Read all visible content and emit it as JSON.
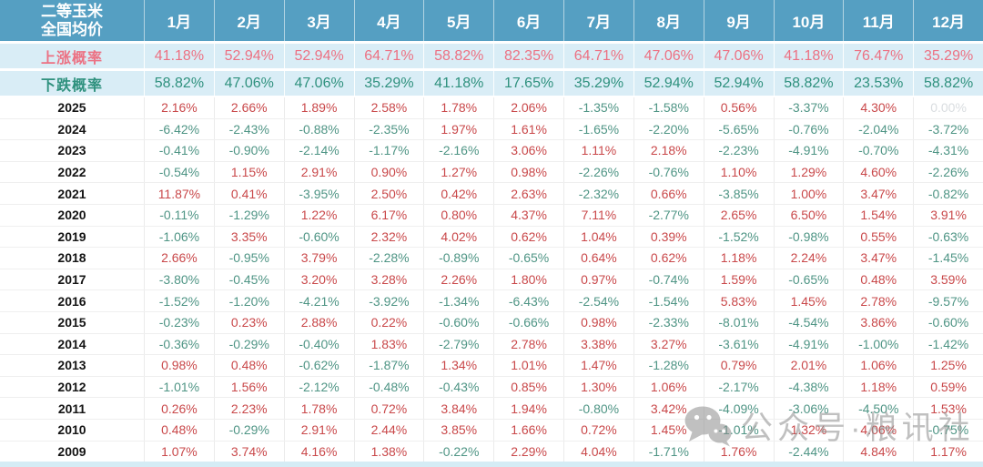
{
  "table": {
    "title_line1": "二等玉米",
    "title_line2": "全国均价",
    "rise_label": "上涨概率",
    "fall_label": "下跌概率"
  },
  "chart_data": {
    "type": "table",
    "title": "二等玉米 全国均价",
    "columns": [
      "1月",
      "2月",
      "3月",
      "4月",
      "5月",
      "6月",
      "7月",
      "8月",
      "9月",
      "10月",
      "11月",
      "12月"
    ],
    "value_unit": "%",
    "rise_probability_pct": [
      41.18,
      52.94,
      52.94,
      64.71,
      58.82,
      82.35,
      64.71,
      47.06,
      47.06,
      41.18,
      76.47,
      35.29
    ],
    "fall_probability_pct": [
      58.82,
      47.06,
      47.06,
      35.29,
      41.18,
      17.65,
      35.29,
      52.94,
      52.94,
      58.82,
      23.53,
      58.82
    ],
    "rows": [
      {
        "year": "2025",
        "values": [
          2.16,
          2.66,
          1.89,
          2.58,
          1.78,
          2.06,
          -1.35,
          -1.58,
          0.56,
          -3.37,
          4.3,
          0.0
        ]
      },
      {
        "year": "2024",
        "values": [
          -6.42,
          -2.43,
          -0.88,
          -2.35,
          1.97,
          1.61,
          -1.65,
          -2.2,
          -5.65,
          -0.76,
          -2.04,
          -3.72
        ]
      },
      {
        "year": "2023",
        "values": [
          -0.41,
          -0.9,
          -2.14,
          -1.17,
          -2.16,
          3.06,
          1.11,
          2.18,
          -2.23,
          -4.91,
          -0.7,
          -4.31
        ]
      },
      {
        "year": "2022",
        "values": [
          -0.54,
          1.15,
          2.91,
          0.9,
          1.27,
          0.98,
          -2.26,
          -0.76,
          1.1,
          1.29,
          4.6,
          -2.26
        ]
      },
      {
        "year": "2021",
        "values": [
          11.87,
          0.41,
          -3.95,
          2.5,
          0.42,
          2.63,
          -2.32,
          0.66,
          -3.85,
          1.0,
          3.47,
          -0.82
        ]
      },
      {
        "year": "2020",
        "values": [
          -0.11,
          -1.29,
          1.22,
          6.17,
          0.8,
          4.37,
          7.11,
          -2.77,
          2.65,
          6.5,
          1.54,
          3.91
        ]
      },
      {
        "year": "2019",
        "values": [
          -1.06,
          3.35,
          -0.6,
          2.32,
          4.02,
          0.62,
          1.04,
          0.39,
          -1.52,
          -0.98,
          0.55,
          -0.63
        ]
      },
      {
        "year": "2018",
        "values": [
          2.66,
          -0.95,
          3.79,
          -2.28,
          -0.89,
          -0.65,
          0.64,
          0.62,
          1.18,
          2.24,
          3.47,
          -1.45
        ]
      },
      {
        "year": "2017",
        "values": [
          -3.8,
          -0.45,
          3.2,
          3.28,
          2.26,
          1.8,
          0.97,
          -0.74,
          1.59,
          -0.65,
          0.48,
          3.59
        ]
      },
      {
        "year": "2016",
        "values": [
          -1.52,
          -1.2,
          -4.21,
          -3.92,
          -1.34,
          -6.43,
          -2.54,
          -1.54,
          5.83,
          1.45,
          2.78,
          -9.57
        ]
      },
      {
        "year": "2015",
        "values": [
          -0.23,
          0.23,
          2.88,
          0.22,
          -0.6,
          -0.66,
          0.98,
          -2.33,
          -8.01,
          -4.54,
          3.86,
          -0.6
        ]
      },
      {
        "year": "2014",
        "values": [
          -0.36,
          -0.29,
          -0.4,
          1.83,
          -2.79,
          2.78,
          3.38,
          3.27,
          -3.61,
          -4.91,
          -1.0,
          -1.42
        ]
      },
      {
        "year": "2013",
        "values": [
          0.98,
          0.48,
          -0.62,
          -1.87,
          1.34,
          1.01,
          1.47,
          -1.28,
          0.79,
          2.01,
          1.06,
          1.25
        ]
      },
      {
        "year": "2012",
        "values": [
          -1.01,
          1.56,
          -2.12,
          -0.48,
          -0.43,
          0.85,
          1.3,
          1.06,
          -2.17,
          -4.38,
          1.18,
          0.59
        ]
      },
      {
        "year": "2011",
        "values": [
          0.26,
          2.23,
          1.78,
          0.72,
          3.84,
          1.94,
          -0.8,
          3.42,
          -4.09,
          -3.06,
          -4.5,
          1.53
        ]
      },
      {
        "year": "2010",
        "values": [
          0.48,
          -0.29,
          2.91,
          2.44,
          3.85,
          1.66,
          0.72,
          1.45,
          -1.01,
          1.32,
          4.06,
          -0.75
        ]
      },
      {
        "year": "2009",
        "values": [
          1.07,
          3.74,
          4.16,
          1.38,
          -0.22,
          2.29,
          4.04,
          -1.71,
          1.76,
          -2.44,
          4.84,
          1.17
        ]
      }
    ]
  },
  "watermark": {
    "text": "公众号·粮讯社",
    "icon": "wechat-icon"
  },
  "colors": {
    "header_bg": "#559fc2",
    "header_text": "#ffffff",
    "prob_row_bg": "#d9edf6",
    "rise_text": "#ec7183",
    "fall_text": "#2f917e",
    "positive_value": "#c9484a",
    "negative_value": "#4f9585",
    "zero_value": "#d9dde0",
    "year_text": "#141414",
    "grid_line": "#ebebeb",
    "bottom_strip": "#d5ecf5",
    "watermark_grey": "#8e8e8e"
  }
}
